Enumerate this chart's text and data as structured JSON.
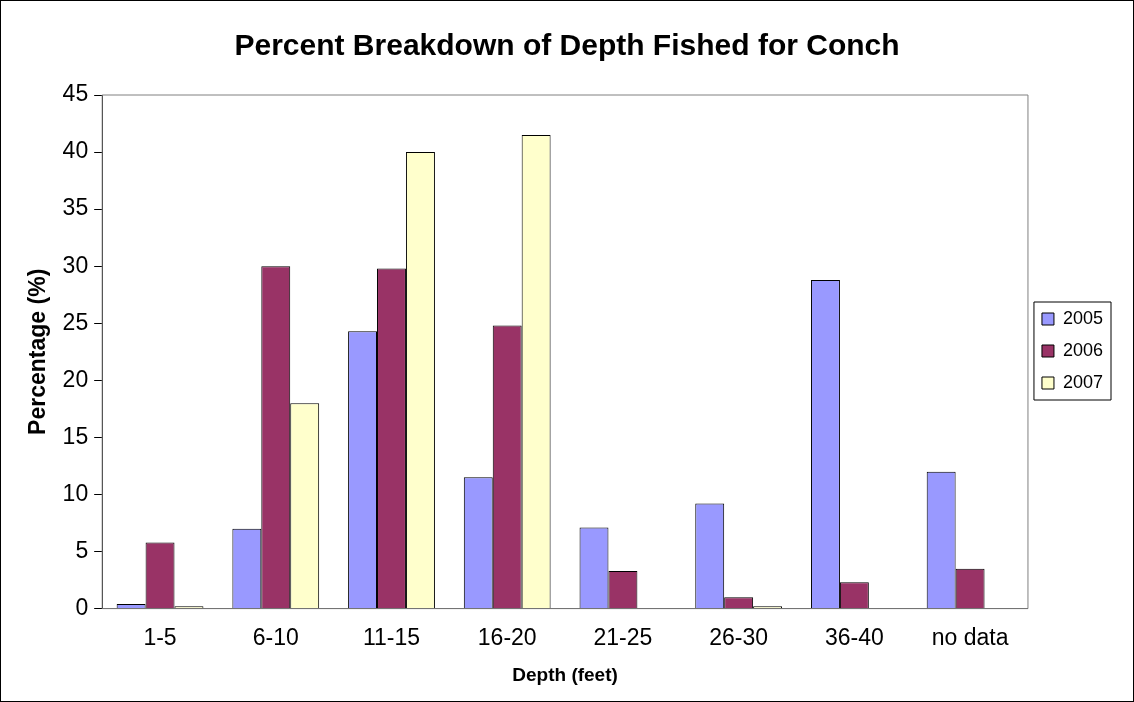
{
  "chart_data": {
    "type": "bar",
    "title": "Percent Breakdown of Depth Fished for Conch",
    "xlabel": "Depth (feet)",
    "ylabel": "Percentage (%)",
    "categories": [
      "1-5",
      "6-10",
      "11-15",
      "16-20",
      "21-25",
      "26-30",
      "36-40",
      "no data"
    ],
    "series": [
      {
        "name": "2005",
        "color": "#9999ff",
        "values": [
          0.4,
          7,
          24.3,
          11.5,
          7.1,
          9.2,
          28.8,
          12
        ]
      },
      {
        "name": "2006",
        "color": "#993366",
        "values": [
          5.8,
          30,
          29.8,
          24.8,
          3.3,
          1,
          2.3,
          3.5
        ]
      },
      {
        "name": "2007",
        "color": "#ffffcc",
        "values": [
          0.2,
          18,
          40,
          41.5,
          0,
          0.2,
          0,
          0
        ]
      }
    ],
    "ylim": [
      0,
      45
    ],
    "yticks": [
      0,
      5,
      10,
      15,
      20,
      25,
      30,
      35,
      40,
      45
    ],
    "grid": false,
    "legend": "right"
  }
}
